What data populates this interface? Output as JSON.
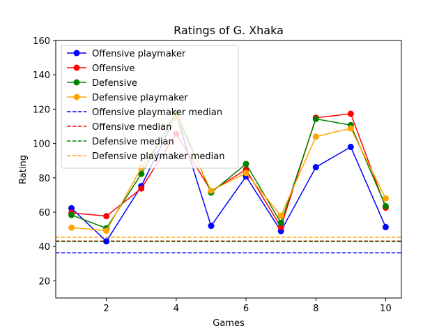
{
  "chart_data": {
    "type": "line",
    "title": "Ratings of G. Xhaka",
    "xlabel": "Games",
    "ylabel": "Rating",
    "xlim": [
      0.55,
      10.45
    ],
    "ylim": [
      10,
      160
    ],
    "xticks": [
      2,
      4,
      6,
      8,
      10
    ],
    "yticks": [
      20,
      40,
      60,
      80,
      100,
      120,
      140,
      160
    ],
    "legend_position": "top-left",
    "grid": false,
    "x": [
      1,
      2,
      3,
      4,
      5,
      6,
      7,
      8,
      9,
      10
    ],
    "series": [
      {
        "name": "Offensive playmaker",
        "color": "#0000ff",
        "values": [
          62.3,
          43.0,
          75.2,
          116.5,
          52.0,
          80.8,
          49.0,
          86.2,
          98.0,
          51.3
        ]
      },
      {
        "name": "Offensive",
        "color": "#ff0000",
        "values": [
          59.6,
          57.7,
          73.8,
          105.7,
          72.3,
          84.8,
          51.3,
          115.0,
          117.3,
          62.6
        ]
      },
      {
        "name": "Defensive",
        "color": "#008000",
        "values": [
          58.4,
          50.6,
          82.3,
          118.0,
          71.4,
          88.1,
          53.8,
          114.3,
          110.7,
          63.5
        ]
      },
      {
        "name": "Defensive playmaker",
        "color": "#ffa500",
        "values": [
          51.0,
          49.2,
          85.8,
          115.3,
          72.5,
          82.8,
          57.9,
          104.0,
          108.8,
          68.0
        ]
      }
    ],
    "medians": [
      {
        "name": "Offensive playmaker median",
        "color": "#0000ff",
        "value": 36.3
      },
      {
        "name": "Offensive median",
        "color": "#ff0000",
        "value": 43.2
      },
      {
        "name": "Defensive median",
        "color": "#008000",
        "value": 42.9
      },
      {
        "name": "Defensive playmaker median",
        "color": "#ffa500",
        "value": 45.4
      }
    ]
  }
}
